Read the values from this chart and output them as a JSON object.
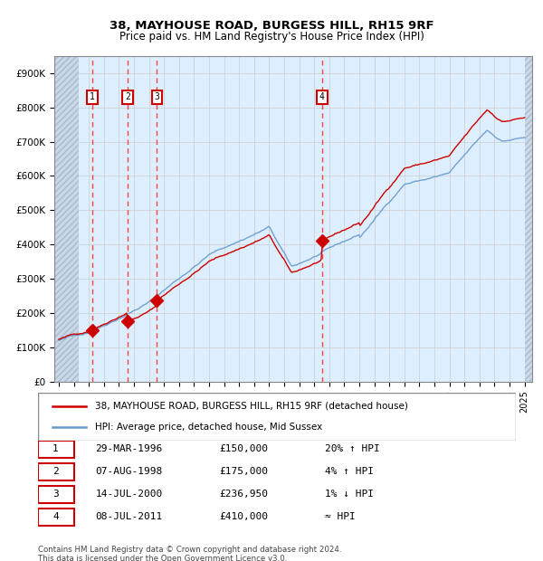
{
  "title": "38, MAYHOUSE ROAD, BURGESS HILL, RH15 9RF",
  "subtitle": "Price paid vs. HM Land Registry's House Price Index (HPI)",
  "purchases": [
    {
      "label": "1",
      "date_num": 1996.24,
      "price": 150000,
      "note": "29-MAR-1996",
      "amount_str": "£150,000",
      "hpi_note": "20% ↑ HPI"
    },
    {
      "label": "2",
      "date_num": 1998.59,
      "price": 175000,
      "note": "07-AUG-1998",
      "amount_str": "£175,000",
      "hpi_note": "4% ↑ HPI"
    },
    {
      "label": "3",
      "date_num": 2000.53,
      "price": 236950,
      "note": "14-JUL-2000",
      "amount_str": "£236,950",
      "hpi_note": "1% ↓ HPI"
    },
    {
      "label": "4",
      "date_num": 2011.52,
      "price": 410000,
      "note": "08-JUL-2011",
      "amount_str": "£410,000",
      "hpi_note": "≈ HPI"
    }
  ],
  "hpi_line_color": "#6699cc",
  "price_line_color": "#cc0000",
  "marker_color": "#cc0000",
  "dashed_line_color": "#ff4444",
  "background_color": "#ddeeff",
  "hatch_color": "#bbccdd",
  "grid_color": "#cccccc",
  "ylim": [
    0,
    950000
  ],
  "yticks": [
    0,
    100000,
    200000,
    300000,
    400000,
    500000,
    600000,
    700000,
    800000,
    900000
  ],
  "xlim_start": 1993.7,
  "xlim_end": 2025.5,
  "legend_line1": "38, MAYHOUSE ROAD, BURGESS HILL, RH15 9RF (detached house)",
  "legend_line2": "HPI: Average price, detached house, Mid Sussex",
  "footer": "Contains HM Land Registry data © Crown copyright and database right 2024.\nThis data is licensed under the Open Government Licence v3.0."
}
